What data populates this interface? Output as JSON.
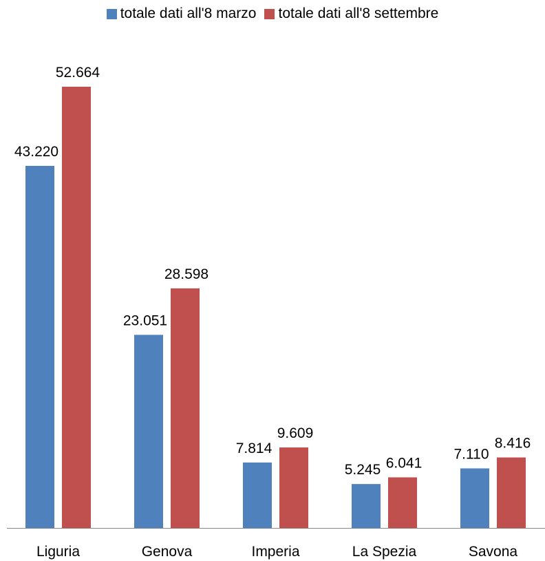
{
  "chart_data": {
    "type": "bar",
    "categories": [
      "Liguria",
      "Genova",
      "Imperia",
      "La Spezia",
      "Savona"
    ],
    "series": [
      {
        "name": "totale dati all'8 marzo",
        "color": "#4F81BD",
        "values": [
          43220,
          23051,
          7814,
          5245,
          7110
        ],
        "labels": [
          "43.220",
          "23.051",
          "7.814",
          "5.245",
          "7.110"
        ]
      },
      {
        "name": "totale dati all'8 settembre",
        "color": "#C0504D",
        "values": [
          52664,
          28598,
          9609,
          6041,
          8416
        ],
        "labels": [
          "52.664",
          "28.598",
          "9.609",
          "6.041",
          "8.416"
        ]
      }
    ],
    "title": "",
    "xlabel": "",
    "ylabel": "",
    "ylim": [
      0,
      60000
    ],
    "grid": false,
    "legend": "top-center"
  }
}
